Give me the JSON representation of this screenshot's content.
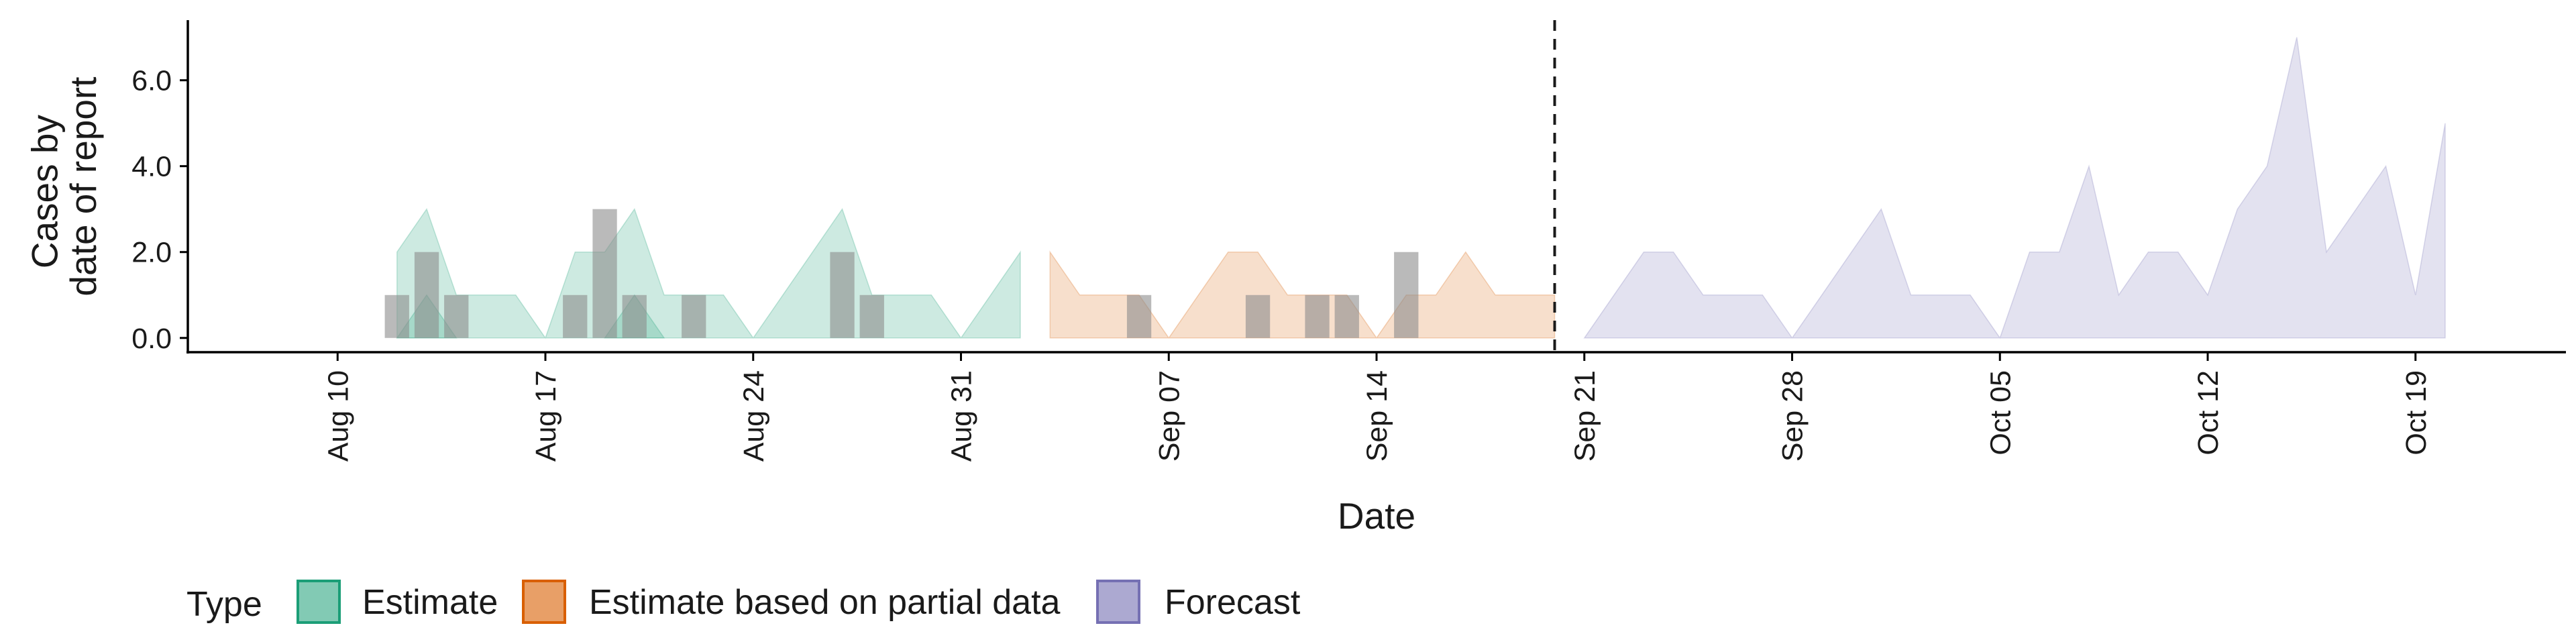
{
  "chart_data": {
    "type": "area",
    "xlabel": "Date",
    "ylabel": [
      "Cases by",
      "date of report"
    ],
    "ylim": [
      -0.3,
      7.4
    ],
    "yticks": [
      0,
      2,
      4,
      6
    ],
    "ytick_labels": [
      "0.0",
      "2.0",
      "4.0",
      "6.0"
    ],
    "xlim": [
      "2020-08-05",
      "2020-10-24"
    ],
    "xticks": [
      "2020-08-10",
      "2020-08-17",
      "2020-08-24",
      "2020-08-31",
      "2020-09-07",
      "2020-09-14",
      "2020-09-21",
      "2020-09-28",
      "2020-10-05",
      "2020-10-12",
      "2020-10-19"
    ],
    "xtick_labels": [
      "Aug 10",
      "Aug 17",
      "Aug 24",
      "Aug 31",
      "Sep 07",
      "Sep 14",
      "Sep 21",
      "Sep 28",
      "Oct 05",
      "Oct 12",
      "Oct 19"
    ],
    "forecast_date": "2020-09-20",
    "legend": {
      "title": "Type",
      "position": "bottom"
    },
    "grid": false,
    "series": [
      {
        "name": "Estimate",
        "color": "#1b9e77",
        "bands": [
          {
            "x": [
              "2020-08-12",
              "2020-08-13",
              "2020-08-14",
              "2020-08-15",
              "2020-08-16",
              "2020-08-17",
              "2020-08-18",
              "2020-08-19",
              "2020-08-20",
              "2020-08-21",
              "2020-08-22",
              "2020-08-23",
              "2020-08-24",
              "2020-08-25",
              "2020-08-26",
              "2020-08-27",
              "2020-08-28",
              "2020-08-29",
              "2020-08-30",
              "2020-08-31",
              "2020-09-01",
              "2020-09-02"
            ],
            "lower": [
              0,
              0,
              0,
              0,
              0,
              0,
              0,
              0,
              0,
              0,
              0,
              0,
              0,
              0,
              0,
              0,
              0,
              0,
              0,
              0,
              0,
              0
            ],
            "upper": [
              2,
              3,
              1,
              1,
              1,
              0,
              2,
              2,
              3,
              1,
              1,
              1,
              0,
              1,
              2,
              3,
              1,
              1,
              1,
              0,
              1,
              2
            ]
          },
          {
            "x": [
              "2020-08-12",
              "2020-08-13",
              "2020-08-14"
            ],
            "lower": [
              0,
              0,
              0
            ],
            "upper": [
              0,
              1,
              0
            ]
          },
          {
            "x": [
              "2020-08-19",
              "2020-08-20",
              "2020-08-21"
            ],
            "lower": [
              0,
              0,
              0
            ],
            "upper": [
              0,
              1,
              0
            ]
          }
        ]
      },
      {
        "name": "Estimate based on partial data",
        "color": "#d95f02",
        "bands": [
          {
            "x": [
              "2020-09-03",
              "2020-09-04",
              "2020-09-05",
              "2020-09-06",
              "2020-09-07",
              "2020-09-08",
              "2020-09-09",
              "2020-09-10",
              "2020-09-11",
              "2020-09-12",
              "2020-09-13",
              "2020-09-14",
              "2020-09-15",
              "2020-09-16",
              "2020-09-17",
              "2020-09-18",
              "2020-09-19",
              "2020-09-20"
            ],
            "lower": [
              0,
              0,
              0,
              0,
              0,
              0,
              0,
              0,
              0,
              0,
              0,
              0,
              0,
              0,
              0,
              0,
              0,
              0
            ],
            "upper": [
              2,
              1,
              1,
              1,
              0,
              1,
              2,
              2,
              1,
              1,
              1,
              0,
              1,
              1,
              2,
              1,
              1,
              1
            ]
          }
        ]
      },
      {
        "name": "Forecast",
        "color": "#7570b3",
        "bands": [
          {
            "x": [
              "2020-09-21",
              "2020-09-22",
              "2020-09-23",
              "2020-09-24",
              "2020-09-25",
              "2020-09-26",
              "2020-09-27",
              "2020-09-28",
              "2020-09-29",
              "2020-09-30",
              "2020-10-01",
              "2020-10-02",
              "2020-10-03",
              "2020-10-04",
              "2020-10-05",
              "2020-10-06",
              "2020-10-07",
              "2020-10-08",
              "2020-10-09",
              "2020-10-10",
              "2020-10-11",
              "2020-10-12",
              "2020-10-13",
              "2020-10-14",
              "2020-10-15",
              "2020-10-16",
              "2020-10-17",
              "2020-10-18",
              "2020-10-19",
              "2020-10-20"
            ],
            "lower": [
              0,
              0,
              0,
              0,
              0,
              0,
              0,
              0,
              0,
              0,
              0,
              0,
              0,
              0,
              0,
              0,
              0,
              0,
              0,
              0,
              0,
              0,
              0,
              0,
              0,
              0,
              0,
              0,
              0,
              0
            ],
            "upper": [
              0,
              1,
              2,
              2,
              1,
              1,
              1,
              0,
              1,
              2,
              3,
              1,
              1,
              1,
              0,
              2,
              2,
              4,
              1,
              2,
              2,
              1,
              3,
              4,
              7,
              2,
              3,
              4,
              1,
              5
            ]
          }
        ]
      }
    ],
    "observed": {
      "color": "#8c8c8c",
      "x": [
        "2020-08-12",
        "2020-08-13",
        "2020-08-14",
        "2020-08-18",
        "2020-08-19",
        "2020-08-20",
        "2020-08-22",
        "2020-08-27",
        "2020-08-28",
        "2020-09-06",
        "2020-09-10",
        "2020-09-12",
        "2020-09-13",
        "2020-09-15"
      ],
      "values": [
        1,
        2,
        1,
        1,
        3,
        1,
        1,
        2,
        1,
        1,
        1,
        1,
        1,
        2
      ]
    }
  }
}
